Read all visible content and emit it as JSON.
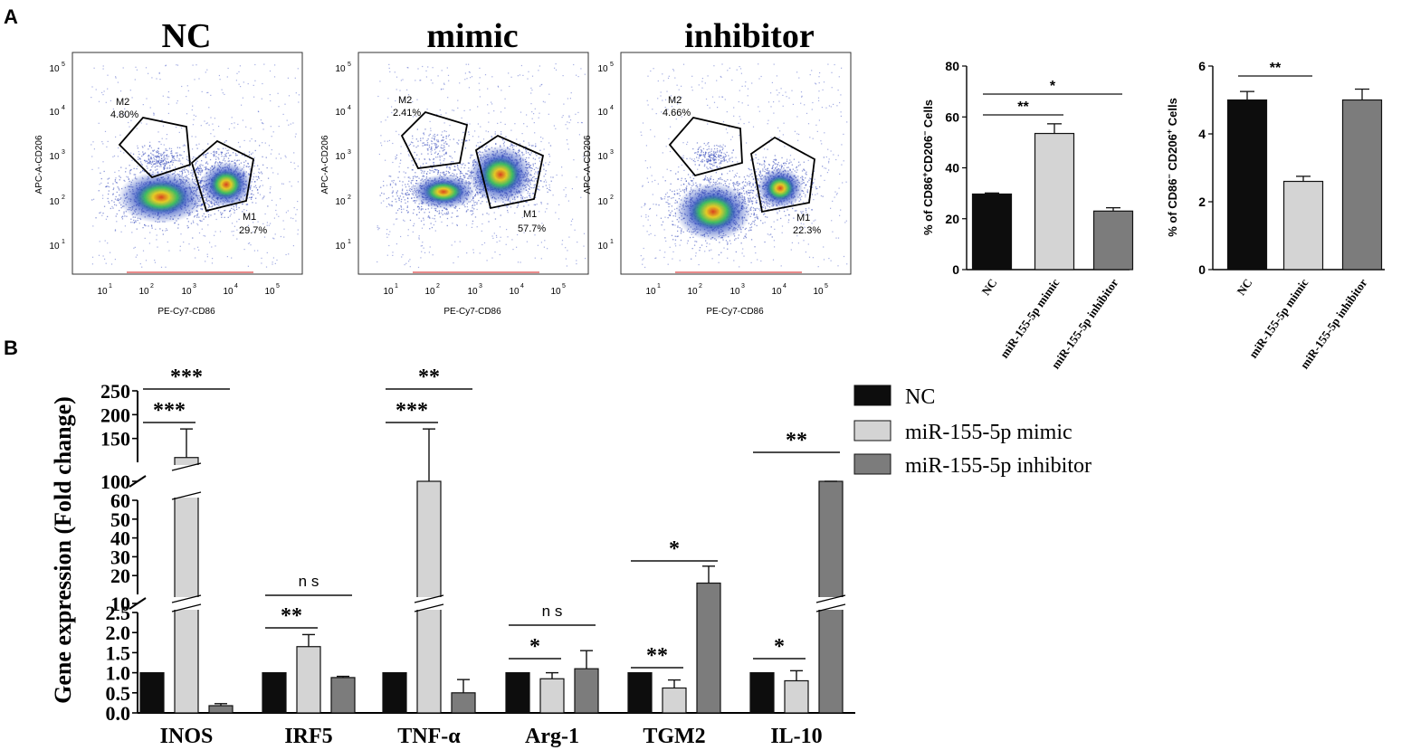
{
  "panel_labels": {
    "a": "A",
    "b": "B"
  },
  "colors": {
    "nc": "#0d0d0d",
    "mimic": "#d4d4d4",
    "inhibitor": "#7c7c7c",
    "gate": "#000000"
  },
  "flow": {
    "xlabel": "PE-Cy7-CD86",
    "ylabel": "APC-A-CD206",
    "ticks": [
      "10",
      "10",
      "10",
      "10",
      "10"
    ],
    "tick_exps": [
      "1",
      "2",
      "3",
      "4",
      "5"
    ],
    "plots": [
      {
        "title": "NC",
        "m2_label": "M2",
        "m2_pct": "4.80%",
        "m1_label": "M1",
        "m1_pct": "29.7%"
      },
      {
        "title": "mimic",
        "m2_label": "M2",
        "m2_pct": "2.41%",
        "m1_label": "M1",
        "m1_pct": "57.7%"
      },
      {
        "title": "inhibitor",
        "m2_label": "M2",
        "m2_pct": "4.66%",
        "m1_label": "M1",
        "m1_pct": "22.3%"
      }
    ]
  },
  "chart_data": [
    {
      "type": "bar",
      "title": "",
      "ylabel": "% of CD86+CD206- Cells",
      "ylabel_parts": {
        "pre": "% of CD86",
        "sup1": "+",
        "mid": "CD206",
        "sup2": "−",
        "post": " Cells"
      },
      "categories": [
        "NC",
        "miR-155-5p mimic",
        "miR-155-5p inhibitor"
      ],
      "values": [
        29.7,
        53.5,
        23
      ],
      "errors": [
        0.4,
        3.8,
        1.3
      ],
      "ylim": [
        0,
        80
      ],
      "yticks": [
        "0",
        "20",
        "40",
        "60",
        "80"
      ],
      "sig": [
        {
          "from": 0,
          "to": 1,
          "label": "**"
        },
        {
          "from": 0,
          "to": 2,
          "label": "*"
        }
      ]
    },
    {
      "type": "bar",
      "title": "",
      "ylabel": "% of CD86- CD206+ Cells",
      "ylabel_parts": {
        "pre": "% of CD86",
        "sup1": "−",
        "mid": " CD206",
        "sup2": "+",
        "post": " Cells"
      },
      "categories": [
        "NC",
        "miR-155-5p mimic",
        "miR-155-5p inhibitor"
      ],
      "values": [
        5.0,
        2.6,
        5.0
      ],
      "errors": [
        0.25,
        0.15,
        0.32
      ],
      "ylim": [
        0,
        6
      ],
      "yticks": [
        "0",
        "2",
        "4",
        "6"
      ],
      "sig": [
        {
          "from": 0,
          "to": 1,
          "label": "**"
        }
      ]
    },
    {
      "type": "bar",
      "title": "",
      "ylabel": "Gene expression (Fold change)",
      "categories": [
        "INOS",
        "IRF5",
        "TNF-α",
        "Arg-1",
        "TGM2",
        "IL-10"
      ],
      "series": [
        {
          "name": "NC",
          "values": [
            1.0,
            1.0,
            1.0,
            1.0,
            1.0,
            1.0
          ],
          "errors": [
            0,
            0,
            0,
            0,
            0,
            0
          ]
        },
        {
          "name": "miR-155-5p mimic",
          "values": [
            110,
            1.65,
            90,
            0.85,
            0.62,
            0.8
          ],
          "errors": [
            60,
            0.3,
            80,
            0.15,
            0.2,
            0.25
          ]
        },
        {
          "name": "miR-155-5p inhibitor",
          "values": [
            0.18,
            0.88,
            0.5,
            1.1,
            16,
            68
          ],
          "errors": [
            0.05,
            0.03,
            0.33,
            0.45,
            9,
            12
          ]
        }
      ],
      "axis_break_segments": [
        {
          "ticks": [
            "0.0",
            "0.5",
            "1.0",
            "1.5",
            "2.0",
            "2.5"
          ],
          "range": [
            0,
            2.5
          ]
        },
        {
          "ticks": [
            "10",
            "20",
            "30",
            "40",
            "50",
            "60"
          ],
          "range": [
            10,
            60
          ]
        },
        {
          "ticks": [
            "100",
            "150",
            "200",
            "250"
          ],
          "range": [
            100,
            250
          ]
        }
      ],
      "legend": [
        "NC",
        "miR-155-5p mimic",
        "miR-155-5p inhibitor"
      ],
      "sig": [
        {
          "group": 0,
          "from": 0,
          "to": 1,
          "label": "***",
          "level": 0
        },
        {
          "group": 0,
          "from": 0,
          "to": 2,
          "label": "***",
          "level": 1
        },
        {
          "group": 1,
          "from": 0,
          "to": 1,
          "label": "**",
          "level": 0
        },
        {
          "group": 1,
          "from": 0,
          "to": 2,
          "label": "ns",
          "level": 1
        },
        {
          "group": 2,
          "from": 0,
          "to": 1,
          "label": "***",
          "level": 0
        },
        {
          "group": 2,
          "from": 0,
          "to": 2,
          "label": "**",
          "level": 1
        },
        {
          "group": 3,
          "from": 0,
          "to": 1,
          "label": "*",
          "level": 0
        },
        {
          "group": 3,
          "from": 0,
          "to": 2,
          "label": "ns",
          "level": 1
        },
        {
          "group": 4,
          "from": 0,
          "to": 1,
          "label": "**",
          "level": 0
        },
        {
          "group": 4,
          "from": 0,
          "to": 2,
          "label": "*",
          "level": 1
        },
        {
          "group": 5,
          "from": 0,
          "to": 1,
          "label": "*",
          "level": 0
        },
        {
          "group": 5,
          "from": 0,
          "to": 2,
          "label": "**",
          "level": 1
        }
      ]
    }
  ]
}
